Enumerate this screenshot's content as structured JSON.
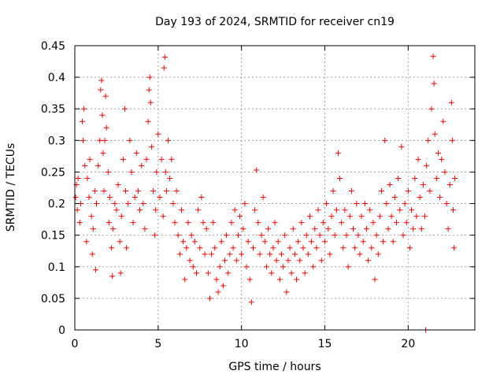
{
  "chart_data": {
    "type": "scatter",
    "title": "Day 193 of 2024, SRMTID for receiver cn19",
    "xlabel": "GPS time / hours",
    "ylabel": "SRMTID / TECUs",
    "xlim": [
      0,
      24
    ],
    "ylim": [
      0,
      0.45
    ],
    "x_ticks": [
      0,
      5,
      10,
      15,
      20
    ],
    "x_tick_labels": [
      "0",
      "5",
      "10",
      "15",
      "20"
    ],
    "y_ticks": [
      0,
      0.05,
      0.1,
      0.15,
      0.2,
      0.25,
      0.3,
      0.35,
      0.4,
      0.45
    ],
    "y_tick_labels": [
      "0",
      "0.05",
      "0.1",
      "0.15",
      "0.2",
      "0.25",
      "0.3",
      "0.35",
      "0.4",
      "0.45"
    ],
    "grid": true,
    "marker": "+",
    "color": "#ff0000",
    "series": [
      {
        "name": "SRMTID",
        "note": "representative sample of the dense cloud, read off the plot",
        "points": [
          [
            0.05,
            0.21
          ],
          [
            0.1,
            0.23
          ],
          [
            0.15,
            0.19
          ],
          [
            0.2,
            0.24
          ],
          [
            0.3,
            0.17
          ],
          [
            0.35,
            0.2
          ],
          [
            0.45,
            0.33
          ],
          [
            0.5,
            0.3
          ],
          [
            0.55,
            0.35
          ],
          [
            0.6,
            0.26
          ],
          [
            0.7,
            0.14
          ],
          [
            0.75,
            0.24
          ],
          [
            0.85,
            0.21
          ],
          [
            0.9,
            0.27
          ],
          [
            1.0,
            0.18
          ],
          [
            1.05,
            0.12
          ],
          [
            1.1,
            0.16
          ],
          [
            1.2,
            0.22
          ],
          [
            1.25,
            0.095
          ],
          [
            1.3,
            0.2
          ],
          [
            1.4,
            0.26
          ],
          [
            1.5,
            0.3
          ],
          [
            1.55,
            0.38
          ],
          [
            1.6,
            0.395
          ],
          [
            1.65,
            0.34
          ],
          [
            1.7,
            0.28
          ],
          [
            1.75,
            0.22
          ],
          [
            1.8,
            0.3
          ],
          [
            1.85,
            0.37
          ],
          [
            1.9,
            0.32
          ],
          [
            2.0,
            0.25
          ],
          [
            2.05,
            0.17
          ],
          [
            2.1,
            0.21
          ],
          [
            2.2,
            0.13
          ],
          [
            2.25,
            0.085
          ],
          [
            2.3,
            0.16
          ],
          [
            2.4,
            0.2
          ],
          [
            2.5,
            0.19
          ],
          [
            2.6,
            0.23
          ],
          [
            2.7,
            0.14
          ],
          [
            2.75,
            0.09
          ],
          [
            2.8,
            0.18
          ],
          [
            2.9,
            0.27
          ],
          [
            3.0,
            0.35
          ],
          [
            3.05,
            0.22
          ],
          [
            3.1,
            0.13
          ],
          [
            3.2,
            0.2
          ],
          [
            3.3,
            0.3
          ],
          [
            3.4,
            0.25
          ],
          [
            3.5,
            0.17
          ],
          [
            3.6,
            0.21
          ],
          [
            3.7,
            0.28
          ],
          [
            3.8,
            0.22
          ],
          [
            3.9,
            0.19
          ],
          [
            4.0,
            0.26
          ],
          [
            4.1,
            0.2
          ],
          [
            4.2,
            0.16
          ],
          [
            4.3,
            0.27
          ],
          [
            4.4,
            0.33
          ],
          [
            4.45,
            0.38
          ],
          [
            4.5,
            0.4
          ],
          [
            4.55,
            0.36
          ],
          [
            4.6,
            0.29
          ],
          [
            4.7,
            0.22
          ],
          [
            4.8,
            0.15
          ],
          [
            4.85,
            0.19
          ],
          [
            4.9,
            0.25
          ],
          [
            5.0,
            0.31
          ],
          [
            5.1,
            0.21
          ],
          [
            5.2,
            0.27
          ],
          [
            5.3,
            0.18
          ],
          [
            5.35,
            0.415
          ],
          [
            5.4,
            0.432
          ],
          [
            5.45,
            0.25
          ],
          [
            5.5,
            0.22
          ],
          [
            5.6,
            0.3
          ],
          [
            5.7,
            0.24
          ],
          [
            5.8,
            0.27
          ],
          [
            5.9,
            0.2
          ],
          [
            6.0,
            0.17
          ],
          [
            6.1,
            0.22
          ],
          [
            6.2,
            0.15
          ],
          [
            6.3,
            0.12
          ],
          [
            6.4,
            0.19
          ],
          [
            6.5,
            0.14
          ],
          [
            6.6,
            0.08
          ],
          [
            6.7,
            0.13
          ],
          [
            6.8,
            0.17
          ],
          [
            6.9,
            0.11
          ],
          [
            7.0,
            0.15
          ],
          [
            7.1,
            0.1
          ],
          [
            7.2,
            0.14
          ],
          [
            7.3,
            0.09
          ],
          [
            7.4,
            0.19
          ],
          [
            7.5,
            0.13
          ],
          [
            7.6,
            0.21
          ],
          [
            7.7,
            0.17
          ],
          [
            7.8,
            0.12
          ],
          [
            7.9,
            0.16
          ],
          [
            8.0,
            0.09
          ],
          [
            8.1,
            0.05
          ],
          [
            8.2,
            0.12
          ],
          [
            8.3,
            0.17
          ],
          [
            8.4,
            0.13
          ],
          [
            8.5,
            0.08
          ],
          [
            8.6,
            0.06
          ],
          [
            8.7,
            0.1
          ],
          [
            8.8,
            0.14
          ],
          [
            8.9,
            0.07
          ],
          [
            9.0,
            0.11
          ],
          [
            9.1,
            0.15
          ],
          [
            9.2,
            0.09
          ],
          [
            9.3,
            0.12
          ],
          [
            9.4,
            0.17
          ],
          [
            9.5,
            0.13
          ],
          [
            9.6,
            0.19
          ],
          [
            9.7,
            0.11
          ],
          [
            9.8,
            0.15
          ],
          [
            9.9,
            0.18
          ],
          [
            10.0,
            0.12
          ],
          [
            10.1,
            0.16
          ],
          [
            10.2,
            0.2
          ],
          [
            10.3,
            0.1
          ],
          [
            10.4,
            0.14
          ],
          [
            10.5,
            0.08
          ],
          [
            10.6,
            0.044
          ],
          [
            10.7,
            0.13
          ],
          [
            10.8,
            0.19
          ],
          [
            10.9,
            0.253
          ],
          [
            11.0,
            0.17
          ],
          [
            11.1,
            0.12
          ],
          [
            11.2,
            0.15
          ],
          [
            11.3,
            0.21
          ],
          [
            11.4,
            0.14
          ],
          [
            11.5,
            0.1
          ],
          [
            11.6,
            0.16
          ],
          [
            11.7,
            0.12
          ],
          [
            11.8,
            0.09
          ],
          [
            11.9,
            0.13
          ],
          [
            12.0,
            0.17
          ],
          [
            12.1,
            0.11
          ],
          [
            12.2,
            0.14
          ],
          [
            12.3,
            0.08
          ],
          [
            12.4,
            0.12
          ],
          [
            12.5,
            0.1
          ],
          [
            12.6,
            0.15
          ],
          [
            12.7,
            0.06
          ],
          [
            12.8,
            0.11
          ],
          [
            12.9,
            0.13
          ],
          [
            13.0,
            0.09
          ],
          [
            13.1,
            0.16
          ],
          [
            13.2,
            0.12
          ],
          [
            13.3,
            0.08
          ],
          [
            13.4,
            0.14
          ],
          [
            13.5,
            0.11
          ],
          [
            13.6,
            0.17
          ],
          [
            13.7,
            0.13
          ],
          [
            13.8,
            0.09
          ],
          [
            13.9,
            0.15
          ],
          [
            14.0,
            0.12
          ],
          [
            14.1,
            0.18
          ],
          [
            14.2,
            0.14
          ],
          [
            14.3,
            0.1
          ],
          [
            14.4,
            0.16
          ],
          [
            14.5,
            0.13
          ],
          [
            14.6,
            0.19
          ],
          [
            14.7,
            0.15
          ],
          [
            14.8,
            0.11
          ],
          [
            14.9,
            0.17
          ],
          [
            15.0,
            0.14
          ],
          [
            15.1,
            0.2
          ],
          [
            15.2,
            0.16
          ],
          [
            15.3,
            0.12
          ],
          [
            15.4,
            0.18
          ],
          [
            15.5,
            0.22
          ],
          [
            15.6,
            0.15
          ],
          [
            15.7,
            0.19
          ],
          [
            15.8,
            0.28
          ],
          [
            15.9,
            0.24
          ],
          [
            16.0,
            0.17
          ],
          [
            16.1,
            0.13
          ],
          [
            16.2,
            0.19
          ],
          [
            16.3,
            0.15
          ],
          [
            16.4,
            0.1
          ],
          [
            16.5,
            0.18
          ],
          [
            16.6,
            0.22
          ],
          [
            16.7,
            0.16
          ],
          [
            16.8,
            0.13
          ],
          [
            16.9,
            0.2
          ],
          [
            17.0,
            0.15
          ],
          [
            17.1,
            0.12
          ],
          [
            17.2,
            0.18
          ],
          [
            17.3,
            0.14
          ],
          [
            17.4,
            0.2
          ],
          [
            17.5,
            0.16
          ],
          [
            17.6,
            0.11
          ],
          [
            17.7,
            0.19
          ],
          [
            17.8,
            0.13
          ],
          [
            17.9,
            0.17
          ],
          [
            18.0,
            0.08
          ],
          [
            18.1,
            0.15
          ],
          [
            18.2,
            0.12
          ],
          [
            18.3,
            0.18
          ],
          [
            18.4,
            0.22
          ],
          [
            18.5,
            0.14
          ],
          [
            18.6,
            0.3
          ],
          [
            18.7,
            0.2
          ],
          [
            18.8,
            0.16
          ],
          [
            18.9,
            0.23
          ],
          [
            19.0,
            0.18
          ],
          [
            19.1,
            0.14
          ],
          [
            19.2,
            0.21
          ],
          [
            19.3,
            0.17
          ],
          [
            19.4,
            0.24
          ],
          [
            19.5,
            0.19
          ],
          [
            19.6,
            0.29
          ],
          [
            19.7,
            0.15
          ],
          [
            19.8,
            0.2
          ],
          [
            19.9,
            0.17
          ],
          [
            20.0,
            0.22
          ],
          [
            20.1,
            0.13
          ],
          [
            20.2,
            0.19
          ],
          [
            20.3,
            0.16
          ],
          [
            20.4,
            0.24
          ],
          [
            20.5,
            0.18
          ],
          [
            20.6,
            0.27
          ],
          [
            20.7,
            0.21
          ],
          [
            20.8,
            0.16
          ],
          [
            20.9,
            0.23
          ],
          [
            21.0,
            0.18
          ],
          [
            21.05,
            0.0
          ],
          [
            21.1,
            0.26
          ],
          [
            21.2,
            0.3
          ],
          [
            21.3,
            0.22
          ],
          [
            21.4,
            0.35
          ],
          [
            21.5,
            0.433
          ],
          [
            21.55,
            0.39
          ],
          [
            21.6,
            0.31
          ],
          [
            21.7,
            0.24
          ],
          [
            21.8,
            0.28
          ],
          [
            21.9,
            0.21
          ],
          [
            22.0,
            0.27
          ],
          [
            22.1,
            0.33
          ],
          [
            22.2,
            0.25
          ],
          [
            22.3,
            0.2
          ],
          [
            22.4,
            0.16
          ],
          [
            22.5,
            0.23
          ],
          [
            22.6,
            0.36
          ],
          [
            22.65,
            0.3
          ],
          [
            22.7,
            0.19
          ],
          [
            22.75,
            0.13
          ],
          [
            22.8,
            0.24
          ]
        ]
      }
    ]
  }
}
